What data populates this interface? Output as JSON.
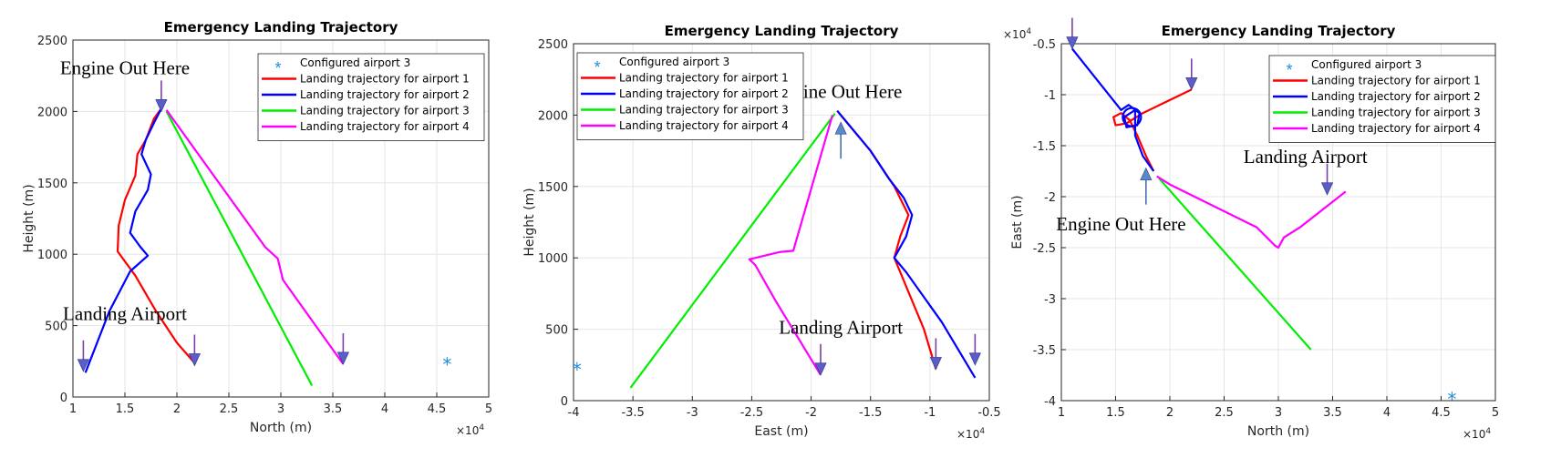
{
  "chart_data": [
    {
      "type": "line",
      "title": "Emergency Landing Trajectory",
      "xlabel": "North (m)",
      "ylabel": "Height (m)",
      "x_exponent": "×10^4",
      "xlim": [
        1,
        5
      ],
      "ylim": [
        0,
        2500
      ],
      "xticks": [
        1,
        1.5,
        2,
        2.5,
        3,
        3.5,
        4,
        4.5,
        5
      ],
      "yticks": [
        0,
        500,
        1000,
        1500,
        2000,
        2500
      ],
      "xtick_labels": [
        "1",
        "1.5",
        "2",
        "2.5",
        "3",
        "3.5",
        "4",
        "4.5",
        "5"
      ],
      "ytick_labels": [
        "0",
        "500",
        "1000",
        "1500",
        "2000",
        "2500"
      ],
      "grid": true,
      "legend_position": "top-right",
      "legend": [
        "Configured airport 3",
        "Landing trajectory for airport 1",
        "Landing trajectory for airport 2",
        "Landing trajectory for airport 3",
        "Landing trajectory for airport 4"
      ],
      "scatter": [
        {
          "name": "Configured airport 3",
          "x": 4.6,
          "y": 240,
          "color": "#1f8fd6"
        }
      ],
      "series": [
        {
          "name": "Landing trajectory for airport 1",
          "color": "#ff0000",
          "points": [
            [
              1.85,
              2020
            ],
            [
              1.78,
              1950
            ],
            [
              1.7,
              1800
            ],
            [
              1.62,
              1700
            ],
            [
              1.6,
              1550
            ],
            [
              1.5,
              1380
            ],
            [
              1.44,
              1200
            ],
            [
              1.43,
              1020
            ],
            [
              1.6,
              850
            ],
            [
              1.8,
              600
            ],
            [
              2.0,
              380
            ],
            [
              2.18,
              230
            ]
          ]
        },
        {
          "name": "Landing trajectory for airport 2",
          "color": "#0000ff",
          "points": [
            [
              1.85,
              2020
            ],
            [
              1.78,
              1920
            ],
            [
              1.7,
              1800
            ],
            [
              1.66,
              1700
            ],
            [
              1.75,
              1560
            ],
            [
              1.72,
              1450
            ],
            [
              1.6,
              1300
            ],
            [
              1.55,
              1150
            ],
            [
              1.65,
              1050
            ],
            [
              1.72,
              990
            ],
            [
              1.55,
              880
            ],
            [
              1.35,
              600
            ],
            [
              1.12,
              170
            ]
          ]
        },
        {
          "name": "Landing trajectory for airport 3",
          "color": "#00ee00",
          "points": [
            [
              1.9,
              2000
            ],
            [
              3.3,
              80
            ]
          ]
        },
        {
          "name": "Landing trajectory for airport 4",
          "color": "#ff00ff",
          "points": [
            [
              1.9,
              2010
            ],
            [
              2.85,
              1050
            ],
            [
              2.97,
              970
            ],
            [
              3.02,
              820
            ],
            [
              3.6,
              230
            ]
          ]
        }
      ],
      "arrows": [
        [
          1.85,
          2000
        ],
        [
          1.1,
          180
        ],
        [
          2.17,
          220
        ],
        [
          3.6,
          230
        ]
      ],
      "annotations": [
        {
          "text": "Engine Out Here",
          "x": 1.5,
          "y": 2260
        },
        {
          "text": "Landing Airport",
          "x": 1.5,
          "y": 540
        }
      ]
    },
    {
      "type": "line",
      "title": "Emergency Landing Trajectory",
      "xlabel": "East (m)",
      "ylabel": "Height (m)",
      "x_exponent": "×10^4",
      "xlim": [
        -4,
        -0.5
      ],
      "ylim": [
        0,
        2500
      ],
      "xticks": [
        -4,
        -3.5,
        -3,
        -2.5,
        -2,
        -1.5,
        -1,
        -0.5
      ],
      "yticks": [
        0,
        500,
        1000,
        1500,
        2000,
        2500
      ],
      "xtick_labels": [
        "-4",
        "-3.5",
        "-3",
        "-2.5",
        "-2",
        "-1.5",
        "-1",
        "-0.5"
      ],
      "ytick_labels": [
        "0",
        "500",
        "1000",
        "1500",
        "2000",
        "2500"
      ],
      "grid": true,
      "legend_position": "top-left",
      "legend": [
        "Configured airport 3",
        "Landing trajectory for airport 1",
        "Landing trajectory for airport 2",
        "Landing trajectory for airport 3",
        "Landing trajectory for airport 4"
      ],
      "scatter": [
        {
          "name": "Configured airport 3",
          "x": -3.97,
          "y": 230,
          "color": "#1f8fd6"
        }
      ],
      "series": [
        {
          "name": "Landing trajectory for airport 1",
          "color": "#ff0000",
          "points": [
            [
              -1.78,
              2030
            ],
            [
              -1.5,
              1750
            ],
            [
              -1.3,
              1500
            ],
            [
              -1.18,
              1300
            ],
            [
              -1.25,
              1150
            ],
            [
              -1.3,
              1000
            ],
            [
              -1.2,
              800
            ],
            [
              -1.05,
              500
            ],
            [
              -0.95,
              220
            ]
          ]
        },
        {
          "name": "Landing trajectory for airport 2",
          "color": "#0000ff",
          "points": [
            [
              -1.78,
              2030
            ],
            [
              -1.5,
              1750
            ],
            [
              -1.35,
              1560
            ],
            [
              -1.22,
              1420
            ],
            [
              -1.15,
              1300
            ],
            [
              -1.2,
              1150
            ],
            [
              -1.3,
              1000
            ],
            [
              -1.2,
              900
            ],
            [
              -0.9,
              550
            ],
            [
              -0.62,
              160
            ]
          ]
        },
        {
          "name": "Landing trajectory for airport 3",
          "color": "#00ee00",
          "points": [
            [
              -1.8,
              2010
            ],
            [
              -3.52,
              90
            ]
          ]
        },
        {
          "name": "Landing trajectory for airport 4",
          "color": "#ff00ff",
          "points": [
            [
              -1.82,
              2000
            ],
            [
              -2.15,
              1050
            ],
            [
              -2.27,
              1040
            ],
            [
              -2.52,
              990
            ],
            [
              -2.47,
              950
            ],
            [
              -2.3,
              700
            ],
            [
              -1.92,
              180
            ]
          ]
        }
      ],
      "arrows": [
        [
          -1.92,
          180
        ],
        [
          -0.95,
          220
        ],
        [
          -0.62,
          250
        ]
      ],
      "up_arrows": [
        [
          -1.75,
          1950
        ]
      ],
      "annotations": [
        {
          "text": "Engine Out Here",
          "x": -1.78,
          "y": 2120
        },
        {
          "text": "Landing Airport",
          "x": -1.75,
          "y": 470
        }
      ]
    },
    {
      "type": "line",
      "title": "Emergency Landing Trajectory",
      "xlabel": "North (m)",
      "ylabel": "East (m)",
      "x_exponent": "×10^4",
      "y_exponent": "×10^4",
      "xlim": [
        1,
        5
      ],
      "ylim": [
        -4,
        -0.5
      ],
      "xticks": [
        1,
        1.5,
        2,
        2.5,
        3,
        3.5,
        4,
        4.5,
        5
      ],
      "yticks": [
        -4,
        -3.5,
        -3,
        -2.5,
        -2,
        -1.5,
        -1,
        -0.5
      ],
      "xtick_labels": [
        "1",
        "1.5",
        "2",
        "2.5",
        "3",
        "3.5",
        "4",
        "4.5",
        "5"
      ],
      "ytick_labels": [
        "-4",
        "-3.5",
        "-3",
        "-2.5",
        "-2",
        "-1.5",
        "-1",
        "-0.5"
      ],
      "grid": true,
      "legend_position": "top-right",
      "legend": [
        "Configured airport 3",
        "Landing trajectory for airport 1",
        "Landing trajectory for airport 2",
        "Landing trajectory for airport 3",
        "Landing trajectory for airport 4"
      ],
      "scatter": [
        {
          "name": "Configured airport 3",
          "x": 4.6,
          "y": -3.97,
          "color": "#1f8fd6"
        }
      ],
      "series": [
        {
          "name": "Landing trajectory for airport 1",
          "color": "#ff0000",
          "points": [
            [
              2.2,
              -0.95
            ],
            [
              1.75,
              -1.18
            ],
            [
              1.6,
              -1.28
            ],
            [
              1.5,
              -1.3
            ],
            [
              1.48,
              -1.22
            ],
            [
              1.55,
              -1.18
            ],
            [
              1.63,
              -1.25
            ],
            [
              1.7,
              -1.4
            ],
            [
              1.78,
              -1.6
            ],
            [
              1.85,
              -1.75
            ]
          ]
        },
        {
          "name": "Landing trajectory for airport 2",
          "color": "#0000ff",
          "points": [
            [
              1.1,
              -0.55
            ],
            [
              1.55,
              -1.15
            ],
            [
              1.62,
              -1.1
            ],
            [
              1.72,
              -1.18
            ],
            [
              1.7,
              -1.3
            ],
            [
              1.6,
              -1.32
            ],
            [
              1.58,
              -1.22
            ],
            [
              1.68,
              -1.15
            ],
            [
              1.68,
              -1.4
            ],
            [
              1.75,
              -1.6
            ],
            [
              1.85,
              -1.75
            ]
          ]
        },
        {
          "name": "Landing trajectory for airport 3",
          "color": "#00ee00",
          "points": [
            [
              1.9,
              -1.82
            ],
            [
              3.3,
              -3.5
            ]
          ]
        },
        {
          "name": "Landing trajectory for airport 4",
          "color": "#ff00ff",
          "points": [
            [
              1.88,
              -1.8
            ],
            [
              2.0,
              -1.88
            ],
            [
              2.8,
              -2.3
            ],
            [
              2.97,
              -2.48
            ],
            [
              3.0,
              -2.5
            ],
            [
              3.05,
              -2.4
            ],
            [
              3.2,
              -2.3
            ],
            [
              3.62,
              -1.95
            ]
          ]
        }
      ],
      "arrows": [
        [
          1.1,
          -0.55
        ],
        [
          2.2,
          -0.95
        ],
        [
          3.45,
          -1.98
        ]
      ],
      "up_arrows": [
        [
          1.78,
          -1.72
        ]
      ],
      "annotations": [
        {
          "text": "Landing Airport",
          "x": 3.25,
          "y": -1.67
        },
        {
          "text": "Engine Out Here",
          "x": 1.55,
          "y": -2.33
        }
      ],
      "circles": [
        [
          1.65,
          -1.22
        ]
      ]
    }
  ]
}
